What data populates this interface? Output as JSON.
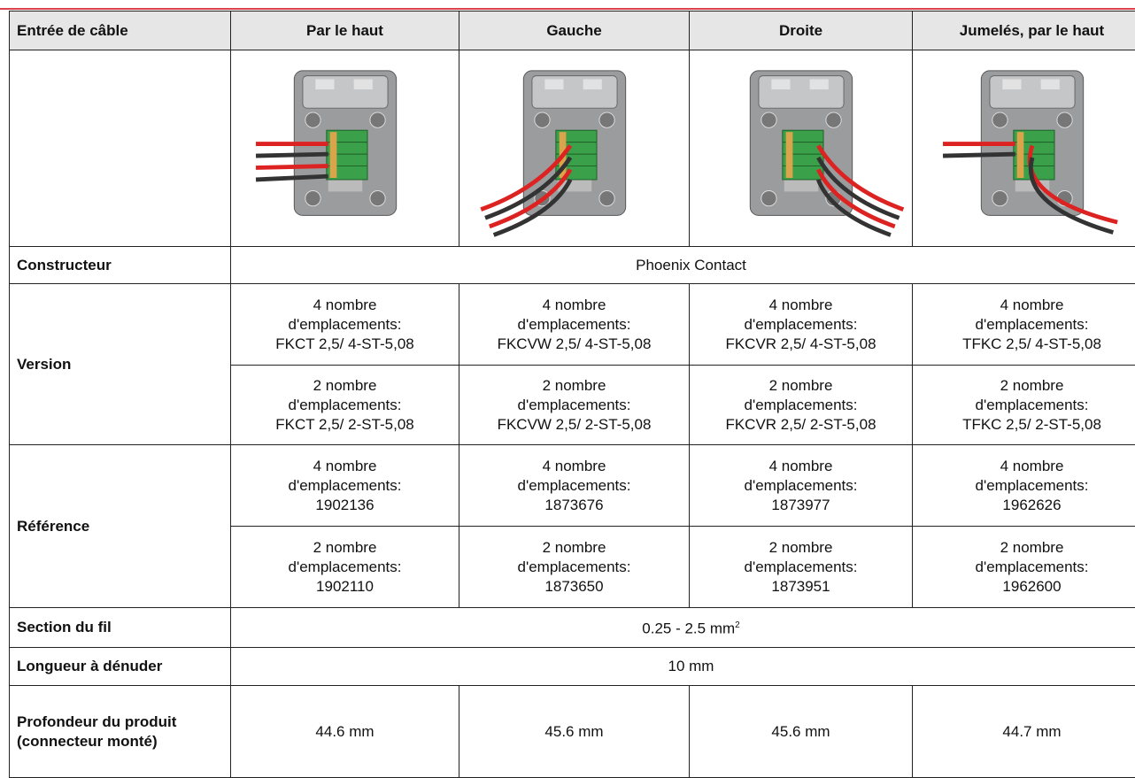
{
  "table": {
    "header": [
      "Entrée de câble",
      "Par le haut",
      "Gauche",
      "Droite",
      "Jumelés, par le haut"
    ],
    "constructeur": {
      "label": "Constructeur",
      "value": "Phoenix Contact"
    },
    "version": {
      "label": "Version",
      "rows": [
        [
          [
            "4 nombre",
            "d'emplacements:",
            "FKCT 2,5/ 4-ST-5,08"
          ],
          [
            "4 nombre",
            "d'emplacements:",
            "FKCVW 2,5/ 4-ST-5,08"
          ],
          [
            "4 nombre",
            "d'emplacements:",
            "FKCVR 2,5/ 4-ST-5,08"
          ],
          [
            "4 nombre",
            "d'emplacements:",
            "TFKC 2,5/ 4-ST-5,08"
          ]
        ],
        [
          [
            "2 nombre",
            "d'emplacements:",
            "FKCT 2,5/ 2-ST-5,08"
          ],
          [
            "2 nombre",
            "d'emplacements:",
            "FKCVW 2,5/ 2-ST-5,08"
          ],
          [
            "2 nombre",
            "d'emplacements:",
            "FKCVR 2,5/ 2-ST-5,08"
          ],
          [
            "2 nombre",
            "d'emplacements:",
            "TFKC 2,5/ 2-ST-5,08"
          ]
        ]
      ]
    },
    "reference": {
      "label": "Référence",
      "rows": [
        [
          [
            "4 nombre",
            "d'emplacements:",
            "1902136"
          ],
          [
            "4 nombre",
            "d'emplacements:",
            "1873676"
          ],
          [
            "4 nombre",
            "d'emplacements:",
            "1873977"
          ],
          [
            "4 nombre",
            "d'emplacements:",
            "1962626"
          ]
        ],
        [
          [
            "2 nombre",
            "d'emplacements:",
            "1902110"
          ],
          [
            "2 nombre",
            "d'emplacements:",
            "1873650"
          ],
          [
            "2 nombre",
            "d'emplacements:",
            "1873951"
          ],
          [
            "2 nombre",
            "d'emplacements:",
            "1962600"
          ]
        ]
      ]
    },
    "section": {
      "label": "Section du fil",
      "value": "0.25 - 2.5 mm",
      "sup": "2"
    },
    "longueur": {
      "label": "Longueur à dénuder",
      "value": "10 mm"
    },
    "profondeur": {
      "label": "Profondeur du produit (connecteur monté)",
      "values": [
        "44.6 mm",
        "45.6 mm",
        "45.6 mm",
        "44.7 mm"
      ]
    }
  }
}
